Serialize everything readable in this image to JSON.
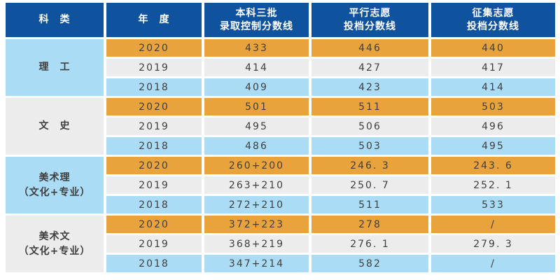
{
  "colors": {
    "header_bg": "#0F529D",
    "header_text": "#ffffff",
    "row_2020_bg": "#E8A33D",
    "row_2019_bg": "#ECECEC",
    "row_2018_bg": "#ABDCF5",
    "category_blue_bg": "#ABDCF5",
    "category_gray_bg": "#ECECEC",
    "data_text": "#3f3f3f",
    "page_bg": "#ffffff"
  },
  "table": {
    "headers": [
      "科　类",
      "年　度",
      "本科三批\n录取控制分数线",
      "平行志愿\n投档分数线",
      "征集志愿\n投档分数线"
    ],
    "groups": [
      {
        "category": "理　工",
        "rows": [
          {
            "year": "2020",
            "values": [
              "433",
              "446",
              "440"
            ]
          },
          {
            "year": "2019",
            "values": [
              "414",
              "427",
              "417"
            ]
          },
          {
            "year": "2018",
            "values": [
              "409",
              "423",
              "414"
            ]
          }
        ]
      },
      {
        "category": "文　史",
        "rows": [
          {
            "year": "2020",
            "values": [
              "501",
              "511",
              "503"
            ]
          },
          {
            "year": "2019",
            "values": [
              "495",
              "506",
              "496"
            ]
          },
          {
            "year": "2018",
            "values": [
              "486",
              "503",
              "495"
            ]
          }
        ]
      },
      {
        "category": "美术理\n（文化+专业）",
        "rows": [
          {
            "year": "2020",
            "values": [
              "260+200",
              "246. 3",
              "243. 6"
            ]
          },
          {
            "year": "2019",
            "values": [
              "263+210",
              "250. 7",
              "252. 1"
            ]
          },
          {
            "year": "2018",
            "values": [
              "272+210",
              "511",
              "533"
            ]
          }
        ]
      },
      {
        "category": "美术文\n（文化+专业）",
        "rows": [
          {
            "year": "2020",
            "values": [
              "372+223",
              "278",
              "/"
            ]
          },
          {
            "year": "2019",
            "values": [
              "368+219",
              "276. 1",
              "279. 3"
            ]
          },
          {
            "year": "2018",
            "values": [
              "347+214",
              "582",
              "/"
            ]
          }
        ]
      }
    ]
  },
  "chart_data": {
    "type": "table",
    "columns": [
      "科类",
      "年度",
      "本科三批录取控制分数线",
      "平行志愿投档分数线",
      "征集志愿投档分数线"
    ],
    "rows": [
      [
        "理工",
        "2020",
        "433",
        "446",
        "440"
      ],
      [
        "理工",
        "2019",
        "414",
        "427",
        "417"
      ],
      [
        "理工",
        "2018",
        "409",
        "423",
        "414"
      ],
      [
        "文史",
        "2020",
        "501",
        "511",
        "503"
      ],
      [
        "文史",
        "2019",
        "495",
        "506",
        "496"
      ],
      [
        "文史",
        "2018",
        "486",
        "503",
        "495"
      ],
      [
        "美术理（文化+专业）",
        "2020",
        "260+200",
        "246.3",
        "243.6"
      ],
      [
        "美术理（文化+专业）",
        "2019",
        "263+210",
        "250.7",
        "252.1"
      ],
      [
        "美术理（文化+专业）",
        "2018",
        "272+210",
        "511",
        "533"
      ],
      [
        "美术文（文化+专业）",
        "2020",
        "372+223",
        "278",
        "/"
      ],
      [
        "美术文（文化+专业）",
        "2019",
        "368+219",
        "276.1",
        "279.3"
      ],
      [
        "美术文（文化+专业）",
        "2018",
        "347+214",
        "582",
        "/"
      ]
    ]
  }
}
